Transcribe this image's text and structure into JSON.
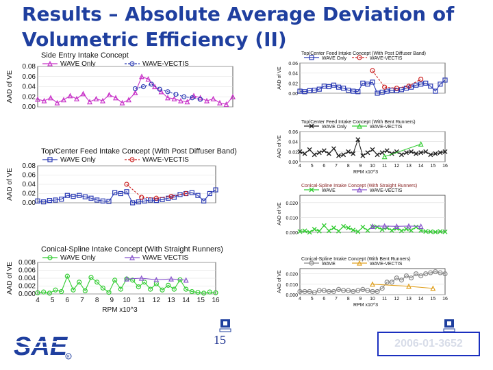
{
  "slide": {
    "title": "Results – Absolute Average Deviation of Volumetric Efficiency (II)",
    "page_number": "15",
    "paper_id": "2006-01-3652",
    "logo_text": "SAE",
    "colors": {
      "title": "#1f3f9f",
      "wave_magenta": "#c832c8",
      "wave_blue": "#2a3ab4",
      "vectis_red": "#cc2020",
      "wave_black": "#222222",
      "vectis_green": "#33cc33",
      "wave_gray": "#888888",
      "vectis_orange": "#e0a020"
    }
  },
  "chart_data": [
    {
      "id": "left-1",
      "type": "line",
      "title": "Side Entry Intake Concept",
      "ylabel": "AAD of VE",
      "xlabel": "",
      "ylim": [
        0,
        0.08
      ],
      "yticks": [
        "0.08",
        "0.06",
        "0.04",
        "0.02",
        "0.00"
      ],
      "yvals": [
        0.08,
        0.06,
        0.04,
        0.02,
        0.0
      ],
      "xticks": [],
      "xlim": [
        4,
        16
      ],
      "series": [
        {
          "name": "WAVE Only",
          "color": "#c832c8",
          "marker": "triangle",
          "dash": false,
          "x": [
            4,
            4.4,
            4.8,
            5.2,
            5.6,
            6,
            6.4,
            6.8,
            7.2,
            7.6,
            8,
            8.4,
            8.8,
            9.2,
            9.6,
            10,
            10.4,
            10.8,
            11.2,
            11.6,
            12,
            12.4,
            12.8,
            13.2,
            13.6,
            14,
            14.4,
            14.8,
            15.2,
            15.6,
            16
          ],
          "y": [
            0.015,
            0.012,
            0.018,
            0.008,
            0.014,
            0.022,
            0.016,
            0.026,
            0.01,
            0.016,
            0.012,
            0.024,
            0.018,
            0.008,
            0.014,
            0.028,
            0.06,
            0.055,
            0.04,
            0.03,
            0.018,
            0.016,
            0.012,
            0.01,
            0.022,
            0.018,
            0.012,
            0.016,
            0.008,
            0.005,
            0.02
          ]
        },
        {
          "name": "WAVE-VECTIS",
          "color": "#2a3ab4",
          "marker": "circle",
          "dash": true,
          "x": [
            10,
            10.5,
            11,
            11.5,
            12,
            12.5,
            13,
            13.5,
            14
          ],
          "y": [
            0.036,
            0.04,
            0.045,
            0.035,
            0.03,
            0.025,
            0.02,
            0.018,
            0.015
          ]
        }
      ]
    },
    {
      "id": "left-2",
      "type": "line",
      "title": "Top/Center Feed Intake Concept (With Post Diffuser Band)",
      "ylabel": "AAD of VE",
      "xlabel": "",
      "ylim": [
        0,
        0.08
      ],
      "yticks": [
        "0.08",
        "0.06",
        "0.04",
        "0.02",
        "0.00"
      ],
      "yvals": [
        0.08,
        0.06,
        0.04,
        0.02,
        0.0
      ],
      "xticks": [],
      "xlim": [
        4,
        16
      ],
      "series": [
        {
          "name": "WAVE Only",
          "color": "#2a3ab4",
          "marker": "square",
          "dash": false,
          "x": [
            4,
            4.4,
            4.8,
            5.2,
            5.6,
            6,
            6.4,
            6.8,
            7.2,
            7.6,
            8,
            8.4,
            8.8,
            9.2,
            9.6,
            10,
            10.4,
            10.8,
            11.2,
            11.6,
            12,
            12.4,
            12.8,
            13.2,
            13.6,
            14,
            14.4,
            14.8,
            15.2,
            15.6,
            16
          ],
          "y": [
            0.004,
            0.002,
            0.005,
            0.006,
            0.008,
            0.016,
            0.014,
            0.016,
            0.013,
            0.01,
            0.006,
            0.004,
            0.003,
            0.022,
            0.02,
            0.024,
            0.0,
            0.002,
            0.004,
            0.006,
            0.005,
            0.007,
            0.01,
            0.012,
            0.018,
            0.02,
            0.022,
            0.016,
            0.004,
            0.02,
            0.028
          ]
        },
        {
          "name": "WAVE-VECTIS",
          "color": "#cc2020",
          "marker": "circle",
          "dash": true,
          "x": [
            10,
            11,
            12,
            13,
            14
          ],
          "y": [
            0.04,
            0.012,
            0.01,
            0.014,
            0.02
          ]
        }
      ]
    },
    {
      "id": "left-3",
      "type": "line",
      "title": "Conical-Spline Intake Concept (With Straight Runners)",
      "ylabel": "AAD of VE",
      "xlabel": "RPM x10^3",
      "ylim": [
        0,
        0.008
      ],
      "yticks": [
        "0.008",
        "0.006",
        "0.004",
        "0.002",
        "0.000"
      ],
      "yvals": [
        0.008,
        0.006,
        0.004,
        0.002,
        0.0
      ],
      "xticks": [
        "4",
        "5",
        "6",
        "7",
        "8",
        "9",
        "10",
        "11",
        "12",
        "13",
        "14",
        "15",
        "16"
      ],
      "xlim": [
        4,
        16
      ],
      "series": [
        {
          "name": "WAVE Only",
          "color": "#33cc33",
          "marker": "circle",
          "dash": false,
          "x": [
            4,
            4.4,
            4.8,
            5.2,
            5.6,
            6,
            6.4,
            6.8,
            7.2,
            7.6,
            8,
            8.4,
            8.8,
            9.2,
            9.6,
            10,
            10.4,
            10.8,
            11.2,
            11.6,
            12,
            12.4,
            12.8,
            13.2,
            13.6,
            14,
            14.4,
            14.8,
            15.2,
            15.6,
            16
          ],
          "y": [
            0.0003,
            0.0005,
            0.0002,
            0.001,
            0.0006,
            0.0045,
            0.001,
            0.003,
            0.0008,
            0.0042,
            0.003,
            0.0015,
            0.0004,
            0.0035,
            0.0012,
            0.0038,
            0.0035,
            0.0018,
            0.003,
            0.0012,
            0.0026,
            0.001,
            0.0022,
            0.0012,
            0.0036,
            0.0012,
            0.0006,
            0.0004,
            0.0002,
            0.0005,
            0.0003
          ]
        },
        {
          "name": "WAVE VECTIS",
          "color": "#8855cc",
          "marker": "triangle",
          "dash": false,
          "x": [
            10,
            11,
            12,
            13,
            14
          ],
          "y": [
            0.0038,
            0.004,
            0.0036,
            0.0038,
            0.0035
          ]
        }
      ]
    },
    {
      "id": "right-1",
      "type": "line",
      "title": "Top/Center Feed Intake Concept (With Post Diffuser Band)",
      "ylabel": "AAD of VE",
      "xlabel": "",
      "ylim": [
        0,
        0.06
      ],
      "yticks": [
        "0.06",
        "0.04",
        "0.02",
        "0.00"
      ],
      "yvals": [
        0.06,
        0.04,
        0.02,
        0.0
      ],
      "xticks": [],
      "xlim": [
        4,
        16
      ],
      "series": [
        {
          "name": "WAVE Only",
          "color": "#2a3ab4",
          "marker": "square",
          "dash": false,
          "x": [
            4,
            4.4,
            4.8,
            5.2,
            5.6,
            6,
            6.4,
            6.8,
            7.2,
            7.6,
            8,
            8.4,
            8.8,
            9.2,
            9.6,
            10,
            10.4,
            10.8,
            11.2,
            11.6,
            12,
            12.4,
            12.8,
            13.2,
            13.6,
            14,
            14.4,
            14.8,
            15.2,
            15.6,
            16
          ],
          "y": [
            0.004,
            0.003,
            0.005,
            0.006,
            0.008,
            0.014,
            0.013,
            0.016,
            0.012,
            0.01,
            0.006,
            0.004,
            0.003,
            0.02,
            0.018,
            0.022,
            0.0,
            0.002,
            0.004,
            0.006,
            0.005,
            0.007,
            0.01,
            0.012,
            0.016,
            0.018,
            0.02,
            0.014,
            0.004,
            0.018,
            0.026
          ]
        },
        {
          "name": "WAVE-VECTIS",
          "color": "#cc2020",
          "marker": "circle",
          "dash": true,
          "x": [
            10,
            11,
            12,
            13,
            14
          ],
          "y": [
            0.045,
            0.012,
            0.01,
            0.014,
            0.028
          ]
        }
      ]
    },
    {
      "id": "right-2",
      "type": "line",
      "title": "Top/Center Feed Intake Concept (With Bent Runners)",
      "ylabel": "AAD of VE",
      "xlabel": "RPM x10^3",
      "ylim": [
        0,
        0.06
      ],
      "yticks": [
        "0.06",
        "0.04",
        "0.02",
        "0.00"
      ],
      "yvals": [
        0.06,
        0.04,
        0.02,
        0.0
      ],
      "xticks": [
        "4",
        "5",
        "6",
        "7",
        "8",
        "9",
        "10",
        "11",
        "12",
        "13",
        "14",
        "15",
        "16"
      ],
      "xlim": [
        4,
        16
      ],
      "series": [
        {
          "name": "WAVE Only",
          "color": "#222222",
          "marker": "cross",
          "dash": false,
          "x": [
            4,
            4.4,
            4.8,
            5.2,
            5.6,
            6,
            6.4,
            6.8,
            7.2,
            7.6,
            8,
            8.4,
            8.8,
            9.2,
            9.6,
            10,
            10.4,
            10.8,
            11.2,
            11.6,
            12,
            12.4,
            12.8,
            13.2,
            13.6,
            14,
            14.4,
            14.8,
            15.2,
            15.6,
            16
          ],
          "y": [
            0.02,
            0.016,
            0.024,
            0.014,
            0.018,
            0.022,
            0.016,
            0.026,
            0.012,
            0.014,
            0.02,
            0.016,
            0.044,
            0.012,
            0.018,
            0.024,
            0.014,
            0.018,
            0.022,
            0.016,
            0.02,
            0.014,
            0.018,
            0.02,
            0.016,
            0.018,
            0.02,
            0.014,
            0.016,
            0.018,
            0.02
          ]
        },
        {
          "name": "WAVE-VECTIS",
          "color": "#33cc33",
          "marker": "triangle",
          "dash": false,
          "x": [
            11,
            14
          ],
          "y": [
            0.01,
            0.035
          ]
        }
      ]
    },
    {
      "id": "right-3",
      "type": "line",
      "title": "Conical-Spline Intake Concept (With Straight Runners)",
      "ylabel": "AAD of VE",
      "xlabel": "",
      "ylim": [
        0,
        0.025
      ],
      "yticks": [
        "0.020",
        "0.010",
        "0.000"
      ],
      "yvals": [
        0.02,
        0.01,
        0.0
      ],
      "xticks": [],
      "xlim": [
        4,
        16
      ],
      "series": [
        {
          "name": "WAVE",
          "color": "#33cc33",
          "marker": "cross",
          "dash": false,
          "x": [
            4,
            4.4,
            4.8,
            5.2,
            5.6,
            6,
            6.4,
            6.8,
            7.2,
            7.6,
            8,
            8.4,
            8.8,
            9.2,
            9.6,
            10,
            10.4,
            10.8,
            11.2,
            11.6,
            12,
            12.4,
            12.8,
            13.2,
            13.6,
            14,
            14.4,
            14.8,
            15.2,
            15.6,
            16
          ],
          "y": [
            0.0005,
            0.001,
            0.0,
            0.002,
            0.0008,
            0.0045,
            0.001,
            0.003,
            0.0008,
            0.004,
            0.003,
            0.0015,
            0.0004,
            0.0035,
            0.0012,
            0.0038,
            0.0035,
            0.0018,
            0.003,
            0.0012,
            0.0026,
            0.001,
            0.0022,
            0.0012,
            0.0036,
            0.0012,
            0.0006,
            0.0004,
            0.0002,
            0.0005,
            0.0003
          ]
        },
        {
          "name": "WAVE-VECTIS",
          "color": "#8855cc",
          "marker": "triangle",
          "dash": false,
          "x": [
            10,
            11,
            12,
            13,
            14
          ],
          "y": [
            0.004,
            0.0042,
            0.004,
            0.0042,
            0.004
          ]
        }
      ]
    },
    {
      "id": "right-4",
      "type": "line",
      "title": "Conical-Spline Intake Concept (With Bent Runners)",
      "ylabel": "AAD of VE",
      "xlabel": "RPM x10^3",
      "ylim": [
        0,
        0.025
      ],
      "yticks": [
        "0.020",
        "0.010",
        "0.000"
      ],
      "yvals": [
        0.02,
        0.01,
        0.0
      ],
      "xticks": [
        "4",
        "5",
        "6",
        "7",
        "8",
        "9",
        "10",
        "11",
        "12",
        "13",
        "14",
        "15",
        "16"
      ],
      "xlim": [
        4,
        16
      ],
      "series": [
        {
          "name": "WAVE",
          "color": "#888888",
          "marker": "circle",
          "dash": false,
          "x": [
            4,
            4.4,
            4.8,
            5.2,
            5.6,
            6,
            6.4,
            6.8,
            7.2,
            7.6,
            8,
            8.4,
            8.8,
            9.2,
            9.6,
            10,
            10.4,
            10.8,
            11.2,
            11.6,
            12,
            12.4,
            12.8,
            13.2,
            13.6,
            14,
            14.4,
            14.8,
            15.2,
            15.6,
            16
          ],
          "y": [
            0.003,
            0.003,
            0.003,
            0.002,
            0.004,
            0.004,
            0.003,
            0.003,
            0.005,
            0.004,
            0.004,
            0.003,
            0.004,
            0.005,
            0.004,
            0.003,
            0.003,
            0.006,
            0.012,
            0.012,
            0.016,
            0.014,
            0.018,
            0.016,
            0.02,
            0.018,
            0.02,
            0.021,
            0.022,
            0.021,
            0.02
          ]
        },
        {
          "name": "WAVE-VECTIS",
          "color": "#e0a020",
          "marker": "triangle",
          "dash": false,
          "x": [
            10,
            13,
            15
          ],
          "y": [
            0.01,
            0.008,
            0.006
          ]
        }
      ]
    }
  ]
}
